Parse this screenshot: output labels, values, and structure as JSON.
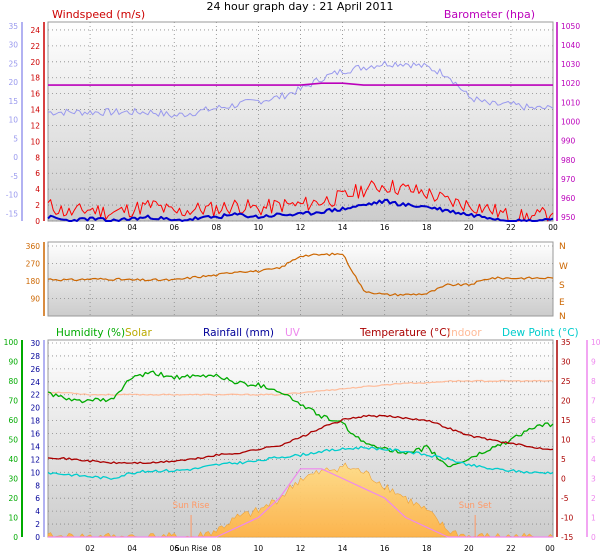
{
  "title": "24 hour graph day : 21 April 2011",
  "colors": {
    "windspeed": "#cc0000",
    "gust": "#ff0000",
    "wind_avg": "#0000cc",
    "barometer": "#bb00bb",
    "temperature_scale": "#9999ee",
    "direction": "#cc6600",
    "humidity": "#00aa00",
    "solar": "#bbaa00",
    "rainfall": "#000099",
    "uv": "#ee88ee",
    "temperature": "#aa0000",
    "indoor": "#ffbb99",
    "dewpoint": "#00cccc",
    "sun_marker": "#ff9966"
  },
  "chart_data": [
    {
      "type": "line",
      "panel": "wind-barometer",
      "title": "24 hour graph day : 21 April 2011",
      "x_ticks": [
        "02",
        "04",
        "06",
        "08",
        "10",
        "12",
        "14",
        "16",
        "18",
        "20",
        "22",
        "00"
      ],
      "left_axis_label": "Windspeed (m/s)",
      "left_axis_ticks": [
        "0",
        "2",
        "4",
        "6",
        "8",
        "10",
        "12",
        "14",
        "16",
        "18",
        "20",
        "22",
        "24"
      ],
      "left_axis_range": [
        0,
        25
      ],
      "far_left_axis_ticks": [
        "-15",
        "-10",
        "-5",
        "0",
        "5",
        "10",
        "15",
        "20",
        "25",
        "30",
        "35"
      ],
      "far_left_axis_range": [
        -17,
        36
      ],
      "right_axis_label": "Barometer (hpa)",
      "right_axis_ticks": [
        "950",
        "960",
        "970",
        "980",
        "990",
        "1000",
        "1010",
        "1020",
        "1030",
        "1040",
        "1050"
      ],
      "right_axis_range": [
        948,
        1052
      ],
      "grid": true,
      "x": [
        0,
        1,
        2,
        3,
        4,
        5,
        6,
        7,
        8,
        9,
        10,
        11,
        12,
        13,
        14,
        15,
        16,
        17,
        18,
        19,
        20,
        21,
        22,
        23,
        24
      ],
      "series": [
        {
          "name": "Barometer (hpa)",
          "axis": "right",
          "values": [
            1019,
            1019,
            1019,
            1019,
            1019,
            1019,
            1019,
            1019,
            1019,
            1019,
            1019,
            1019,
            1019,
            1020,
            1020,
            1019,
            1019,
            1019,
            1019,
            1019,
            1019,
            1019,
            1019,
            1019,
            1019
          ]
        },
        {
          "axis": "far_left",
          "values": [
            12,
            12,
            12,
            12,
            12,
            12,
            11,
            12,
            13,
            14,
            15,
            16,
            18,
            21,
            23,
            24,
            25,
            25,
            24,
            22,
            16,
            14,
            14,
            13,
            13
          ]
        },
        {
          "axis": "left",
          "values": [
            2,
            1,
            1.5,
            1,
            1.5,
            2,
            1,
            1.5,
            1.5,
            2,
            1.5,
            2,
            2,
            2.5,
            3,
            4,
            4.5,
            4,
            3.5,
            2.5,
            2,
            1.5,
            0.5,
            0.5,
            1
          ]
        },
        {
          "axis": "left",
          "values": [
            0.5,
            0,
            0.3,
            0,
            0.3,
            0.5,
            0,
            0.3,
            0.5,
            0.8,
            0.5,
            0.8,
            0.8,
            1.2,
            1.5,
            2,
            2.5,
            2,
            1.8,
            1.3,
            0.8,
            0.5,
            0,
            0,
            0.3
          ]
        }
      ]
    },
    {
      "type": "line",
      "panel": "wind-direction",
      "y_ticks": [
        "90",
        "180",
        "270",
        "360"
      ],
      "y_range": [
        0,
        360
      ],
      "compass_labels": [
        "N",
        "W",
        "S",
        "E",
        "N"
      ],
      "grid": true,
      "x": [
        0,
        1,
        2,
        3,
        4,
        5,
        6,
        7,
        8,
        9,
        10,
        11,
        12,
        13,
        14,
        15,
        16,
        17,
        18,
        19,
        20,
        21,
        22,
        23,
        24
      ],
      "series": [
        {
          "values": [
            190,
            185,
            190,
            190,
            185,
            185,
            185,
            200,
            210,
            230,
            230,
            245,
            310,
            315,
            320,
            130,
            110,
            110,
            115,
            160,
            160,
            195,
            195,
            195,
            195
          ]
        }
      ]
    },
    {
      "type": "line",
      "panel": "multi",
      "x_ticks": [
        "02",
        "04",
        "Sun Rise",
        "06",
        "08",
        "10",
        "12",
        "14",
        "16",
        "18",
        "20",
        "22",
        "00"
      ],
      "legend": [
        "Humidity (%)",
        "Solar",
        "Rainfall (mm)",
        "UV",
        "Temperature (°C)",
        "Indoor",
        "Dew Point (°C)"
      ],
      "annotations": [
        "Sun Rise",
        "Sun Set"
      ],
      "humidity_axis_ticks": [
        "0",
        "10",
        "20",
        "30",
        "40",
        "50",
        "60",
        "70",
        "80",
        "90",
        "100"
      ],
      "humidity_axis_range": [
        0,
        100
      ],
      "rain_axis_ticks": [
        "0",
        "2",
        "4",
        "6",
        "8",
        "10",
        "12",
        "14",
        "16",
        "18",
        "20",
        "22",
        "24",
        "26",
        "28",
        "30"
      ],
      "rain_axis_range": [
        0,
        30
      ],
      "temp_axis_ticks": [
        "-15",
        "-10",
        "-5",
        "0",
        "5",
        "10",
        "15",
        "20",
        "25",
        "30",
        "35"
      ],
      "temp_axis_range": [
        -15,
        35
      ],
      "uv_axis_ticks": [
        "0",
        "1",
        "2",
        "3",
        "4",
        "5",
        "6",
        "7",
        "8",
        "9",
        "10"
      ],
      "uv_axis_range": [
        0,
        10
      ],
      "grid": true,
      "x": [
        0,
        1,
        2,
        3,
        4,
        5,
        6,
        7,
        8,
        9,
        10,
        11,
        12,
        13,
        14,
        15,
        16,
        17,
        18,
        19,
        20,
        21,
        22,
        23,
        24
      ],
      "series": [
        {
          "name": "Humidity (%)",
          "axis": "humidity",
          "values": [
            74,
            70,
            70,
            70,
            82,
            84,
            82,
            82,
            83,
            79,
            78,
            75,
            68,
            62,
            58,
            48,
            46,
            42,
            46,
            36,
            40,
            45,
            50,
            56,
            58
          ]
        },
        {
          "name": "Temperature (°C)",
          "axis": "temp",
          "values": [
            5.5,
            5,
            4.5,
            4,
            4,
            4,
            4.5,
            5,
            6,
            6.5,
            7.5,
            8.5,
            10.5,
            13,
            15,
            16,
            16,
            15.5,
            15,
            13,
            11,
            10,
            9,
            8,
            7.5
          ]
        },
        {
          "name": "Dew Point (°C)",
          "axis": "temp",
          "values": [
            1.5,
            1,
            0.5,
            0,
            1.5,
            2,
            2,
            2.5,
            3.5,
            4,
            4.5,
            5.5,
            6,
            7,
            7.5,
            8,
            7.5,
            7,
            6,
            5,
            3.5,
            2.5,
            2,
            1.5,
            1.5
          ]
        },
        {
          "name": "Indoor",
          "axis": "temp",
          "values": [
            22,
            22,
            21.5,
            21.5,
            21.5,
            21.5,
            21.5,
            21.5,
            21.5,
            21.5,
            21.5,
            21.5,
            22,
            22.5,
            23,
            23.5,
            24,
            24.5,
            24.5,
            25,
            25,
            25,
            25,
            25,
            25
          ]
        },
        {
          "name": "Solar",
          "axis": "rain",
          "values": [
            0,
            0,
            0,
            0,
            0,
            0,
            0,
            0,
            1,
            3,
            4,
            6,
            9,
            10,
            11,
            10,
            8,
            6,
            4,
            1,
            0,
            0,
            0,
            0,
            0
          ]
        },
        {
          "name": "UV",
          "axis": "uv",
          "values": [
            0,
            0,
            0,
            0,
            0,
            0,
            0,
            0,
            0,
            0.5,
            1,
            2,
            3.5,
            3.5,
            3,
            2.5,
            2,
            1,
            0.5,
            0,
            0,
            0,
            0,
            0,
            0
          ]
        }
      ]
    }
  ]
}
